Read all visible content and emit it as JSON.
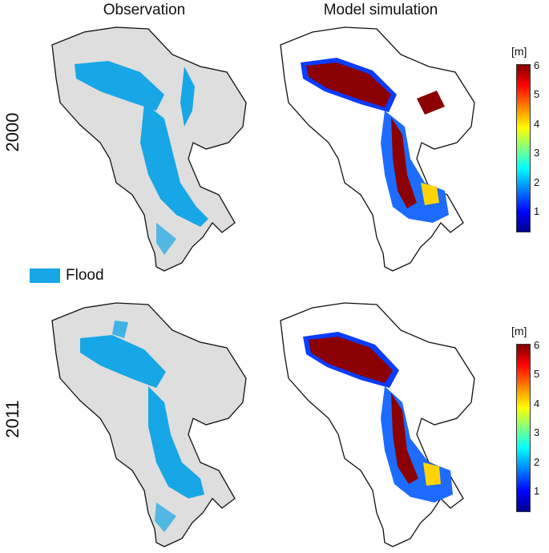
{
  "titles": {
    "observation": "Observation",
    "simulation": "Model simulation"
  },
  "rows": [
    {
      "label": "2000"
    },
    {
      "label": "2011"
    }
  ],
  "legend": {
    "label": "Flood",
    "color": "#17a7e6"
  },
  "colorbar": {
    "unit": "[m]",
    "ticks": [
      "6",
      "5",
      "4",
      "3",
      "2",
      "1"
    ],
    "range": [
      0.3,
      6
    ]
  },
  "colors": {
    "basin": "#dedede",
    "outline": "#111111",
    "flood": "#17a7e6",
    "deep": "#8b0000"
  }
}
